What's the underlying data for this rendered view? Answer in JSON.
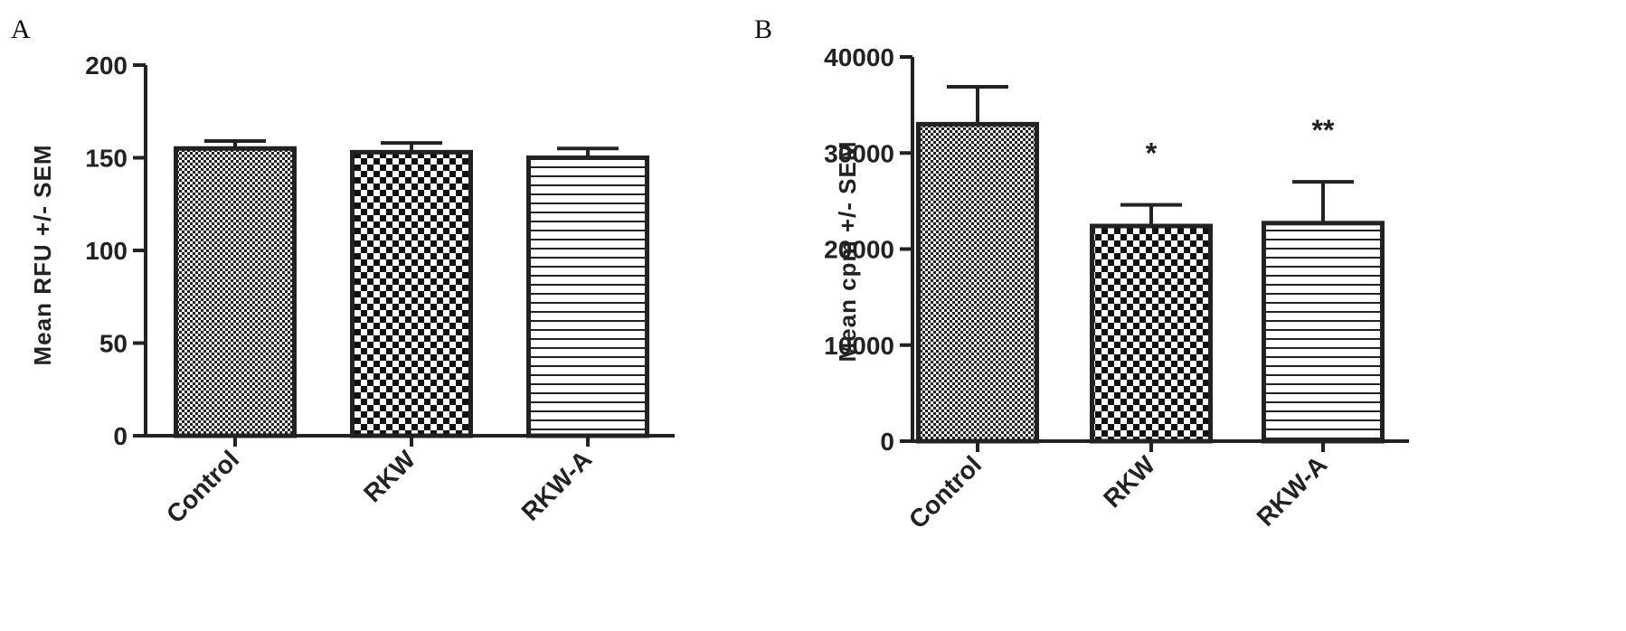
{
  "chart_data": [
    {
      "type": "bar",
      "panel_label": "A",
      "categories": [
        "Control",
        "RKW",
        "RKW-A"
      ],
      "values": [
        155,
        153,
        150
      ],
      "errors": [
        4,
        5,
        5
      ],
      "annotations": [
        "",
        "",
        ""
      ],
      "patterns": [
        "fine-check",
        "checker",
        "horizontal-lines"
      ],
      "ylabel": "Mean RFU +/- SEM",
      "ylim": [
        0,
        200
      ],
      "yticks": [
        0,
        50,
        100,
        150,
        200
      ],
      "ytick_labels": [
        "0",
        "50",
        "100",
        "150",
        "200"
      ]
    },
    {
      "type": "bar",
      "panel_label": "B",
      "categories": [
        "Control",
        "RKW",
        "RKW-A"
      ],
      "values": [
        33000,
        22400,
        22700
      ],
      "errors": [
        3900,
        2200,
        4300
      ],
      "annotations": [
        "",
        "*",
        "**"
      ],
      "patterns": [
        "fine-check",
        "checker",
        "horizontal-lines"
      ],
      "ylabel": "Mean cpm +/- SEM",
      "ylim": [
        0,
        40000
      ],
      "yticks": [
        0,
        10000,
        20000,
        30000,
        40000
      ],
      "ytick_labels": [
        "0",
        "10000",
        "20000",
        "30000",
        "40000"
      ]
    }
  ]
}
